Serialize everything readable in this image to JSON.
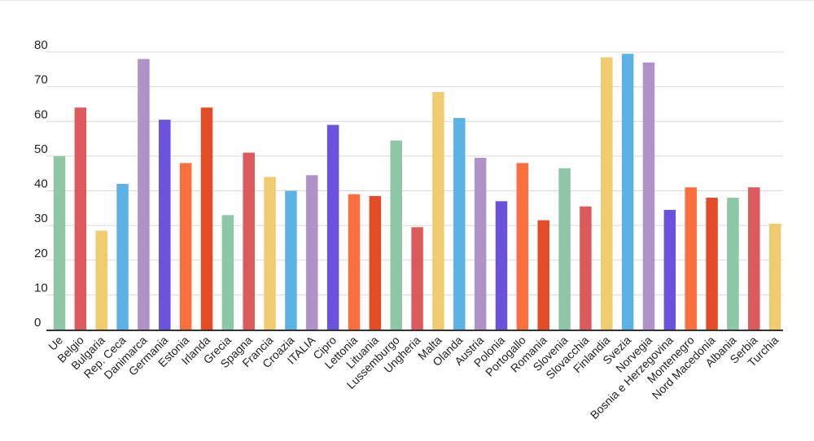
{
  "chart_data": {
    "type": "bar",
    "title": "",
    "xlabel": "",
    "ylabel": "",
    "ylim": [
      0,
      80
    ],
    "yticks": [
      0,
      10,
      20,
      30,
      40,
      50,
      60,
      70,
      80
    ],
    "grid": true,
    "legend": "none",
    "categories": [
      "Ue",
      "Belgio",
      "Bulgaria",
      "Rep. Ceca",
      "Danimarca",
      "Germania",
      "Estonia",
      "Irlanda",
      "Grecia",
      "Spagna",
      "Francia",
      "Croazia",
      "ITALIA",
      "Cipro",
      "Lettonia",
      "Lituania",
      "Lussemburgo",
      "Ungheria",
      "Malta",
      "Olanda",
      "Austria",
      "Polonia",
      "Portogallo",
      "Romania",
      "Slovenia",
      "Slovacchia",
      "Finlandia",
      "Svezia",
      "Norvegia",
      "Bosnia e Herzegovina",
      "Montenegro",
      "Nord Macedonia",
      "Albania",
      "Serbia",
      "Turchia"
    ],
    "values": [
      50,
      64,
      28.5,
      42,
      78,
      60.5,
      48,
      64,
      33,
      51,
      44,
      40,
      44.5,
      59,
      39,
      38.5,
      54.5,
      29.5,
      68.5,
      61,
      49.5,
      37,
      48,
      31.5,
      46.5,
      35.5,
      78.5,
      79.5,
      77,
      34.5,
      41,
      38,
      38,
      41,
      30.5
    ],
    "colors": [
      "#8ec6a8",
      "#dc5a5e",
      "#f1cb6f",
      "#5cb2e5",
      "#ae92c8",
      "#6b52db",
      "#fb6f3e",
      "#e44c27",
      "#8ec6a8",
      "#dc5a5e",
      "#f1cb6f",
      "#5cb2e5",
      "#ae92c8",
      "#6b52db",
      "#fb6f3e",
      "#e44c27",
      "#8ec6a8",
      "#dc5a5e",
      "#f1cb6f",
      "#5cb2e5",
      "#ae92c8",
      "#6b52db",
      "#fb6f3e",
      "#e44c27",
      "#8ec6a8",
      "#dc5a5e",
      "#f1cb6f",
      "#5cb2e5",
      "#ae92c8",
      "#6b52db",
      "#fb6f3e",
      "#e44c27",
      "#8ec6a8",
      "#dc5a5e",
      "#f1cb6f"
    ]
  }
}
